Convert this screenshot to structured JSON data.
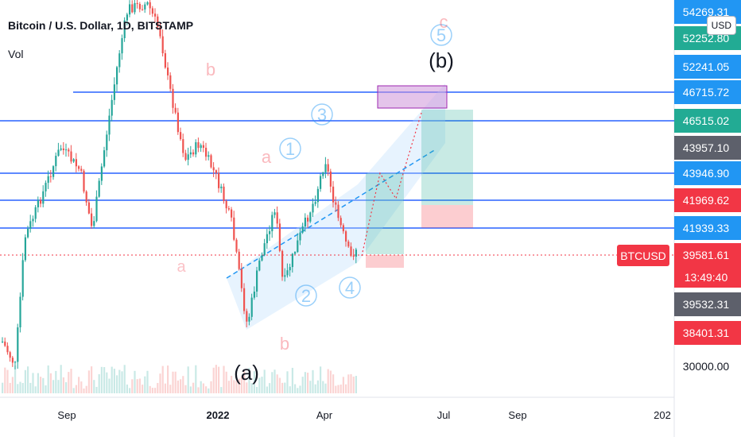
{
  "header": {
    "title": "Bitcoin / U.S. Dollar, 1D, BITSTAMP",
    "volume_label": "Vol",
    "currency_button": "USD"
  },
  "chart_data": {
    "type": "candlestick",
    "symbol": "BTCUSD",
    "interval": "1D",
    "exchange": "BITSTAMP",
    "x_ticks": [
      "Sep",
      "2022",
      "Apr",
      "Jul",
      "Sep",
      "202"
    ],
    "price_scale": [
      "54269.31",
      "52252.80",
      "52241.05",
      "46715.72",
      "46515.02",
      "43957.10",
      "43946.90",
      "41969.62",
      "41939.33",
      "39581.61",
      "39532.31",
      "38401.31",
      "30000.00"
    ],
    "last_price": "39581.61",
    "last_price_countdown": "13:49:40",
    "symbol_tag": "BTCUSD",
    "horizontal_levels": [
      46715.72,
      46515.02,
      43946.9,
      41969.62,
      41939.33
    ],
    "wave_labels": [
      "1",
      "2",
      "3",
      "4",
      "5"
    ],
    "wave_letters": [
      "a",
      "b",
      "c",
      "(a)",
      "(b)"
    ],
    "colors": {
      "up": "#26a69a",
      "down": "#ef5350",
      "level_line": "#2962ff",
      "channel": "#bbdefb",
      "label_blue": "#2196f3",
      "label_gray": "#5d606b",
      "label_red": "#f23645",
      "label_green": "#22ab94",
      "target_box": "#ce93d8"
    }
  }
}
